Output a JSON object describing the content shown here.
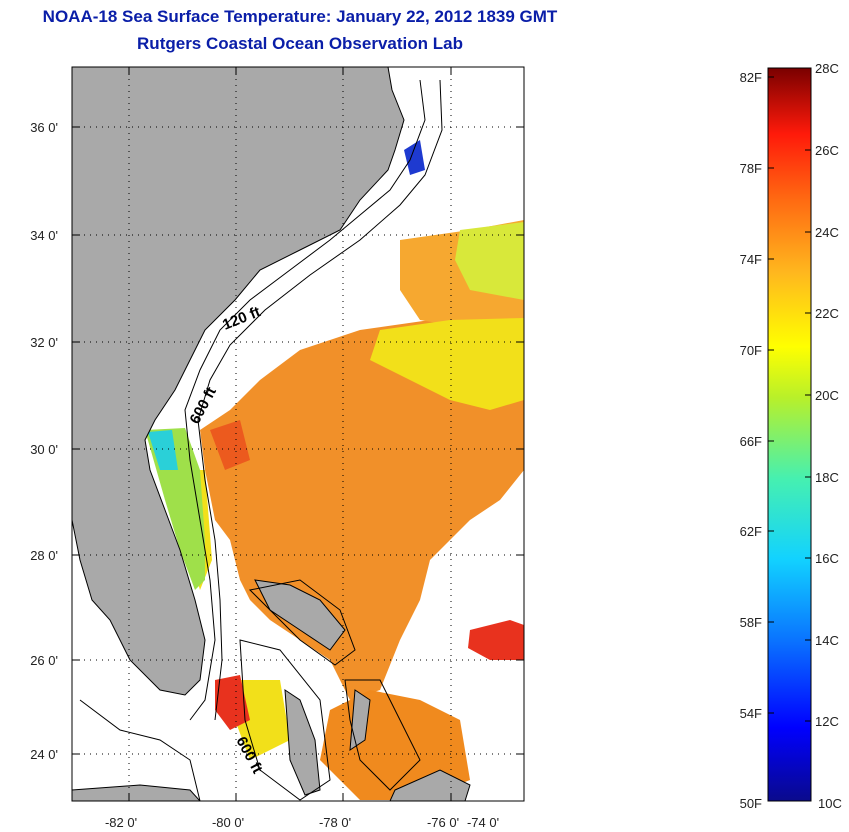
{
  "title": {
    "line1": "NOAA-18 Sea Surface Temperature:  January 22, 2012 1839 GMT",
    "line2": "Rutgers Coastal Ocean Observation Lab"
  },
  "map": {
    "lon_ticks": [
      "-82 0'",
      "-80 0'",
      "-78 0'",
      "-76 0'",
      "-74 0'"
    ],
    "lat_ticks": [
      "36 0'",
      "34 0'",
      "32 0'",
      "30 0'",
      "28 0'",
      "26 0'",
      "24 0'"
    ],
    "isobath_labels": [
      "120 ft",
      "600 ft",
      "600 ft"
    ]
  },
  "colorbar": {
    "fahrenheit_labels": [
      "82F",
      "78F",
      "74F",
      "70F",
      "66F",
      "62F",
      "58F",
      "54F",
      "50F"
    ],
    "celsius_labels": [
      "28C",
      "26C",
      "24C",
      "22C",
      "20C",
      "18C",
      "16C",
      "14C",
      "12C",
      "10C"
    ]
  },
  "colors": {
    "title": "#0a1ea8",
    "land": "#a9a9a9",
    "warm": "#f08a1e",
    "hot": "#e8321e",
    "mild": "#f2e01a",
    "cool": "#9fe04a",
    "cold": "#2ad0d8"
  }
}
